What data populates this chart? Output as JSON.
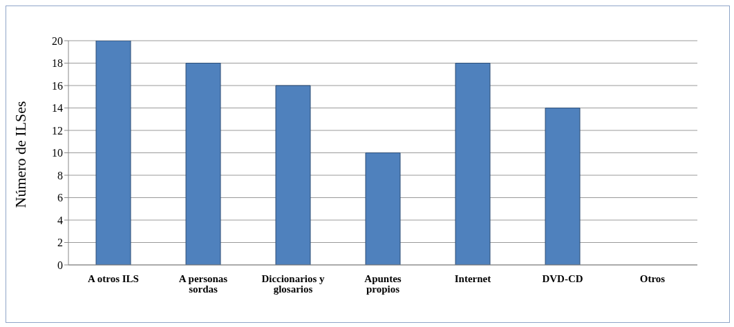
{
  "chart_data": {
    "type": "bar",
    "ylabel": "Número de ILSes",
    "categories": [
      "A otros ILS",
      "A personas sordas",
      "Diccionarios y glosarios",
      "Apuntes propios",
      "Internet",
      "DVD-CD",
      "Otros"
    ],
    "values": [
      20,
      18,
      16,
      10,
      18,
      14,
      0
    ],
    "color": "#4f81bd",
    "ylim": [
      0,
      20
    ],
    "yticks": [
      0,
      2,
      4,
      6,
      8,
      10,
      12,
      14,
      16,
      18,
      20
    ],
    "grid": "y",
    "legend": false
  }
}
